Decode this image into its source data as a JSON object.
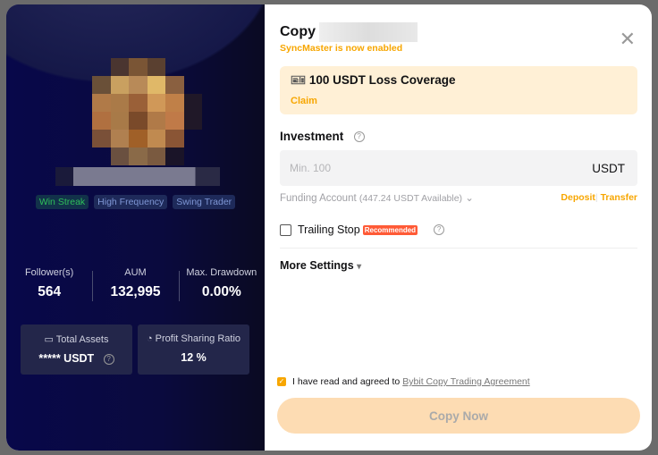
{
  "trader": {
    "tags": [
      "Win Streak",
      "High Frequency",
      "Swing Trader"
    ],
    "stats": [
      {
        "label": "Follower(s)",
        "value": "564"
      },
      {
        "label": "AUM",
        "value": "132,995"
      },
      {
        "label": "Max. Drawdown",
        "value": "0.00%"
      }
    ],
    "total_assets": {
      "label": "Total Assets",
      "value": "***** USDT"
    },
    "profit_sharing": {
      "label": "Profit Sharing Ratio",
      "value": "12 %"
    }
  },
  "copy": {
    "title": "Copy",
    "sync_status": "SyncMaster is now enabled",
    "promo": {
      "title": "100 USDT Loss Coverage",
      "claim": "Claim"
    },
    "investment_label": "Investment",
    "input_placeholder": "Min. 100",
    "input_value": "",
    "currency": "USDT",
    "funding_label": "Funding Account",
    "funding_available": "(447.24 USDT Available)",
    "deposit": "Deposit",
    "transfer": "Transfer",
    "trailing_stop": "Trailing Stop",
    "recommended": "Recommended",
    "more_settings": "More Settings",
    "agree_text": "I have read and agreed to",
    "agree_link": "Bybit Copy Trading Agreement",
    "agree_checked": true,
    "button": "Copy Now"
  },
  "colors": {
    "accent": "#f7a600",
    "panel": "#0a0a3e"
  }
}
